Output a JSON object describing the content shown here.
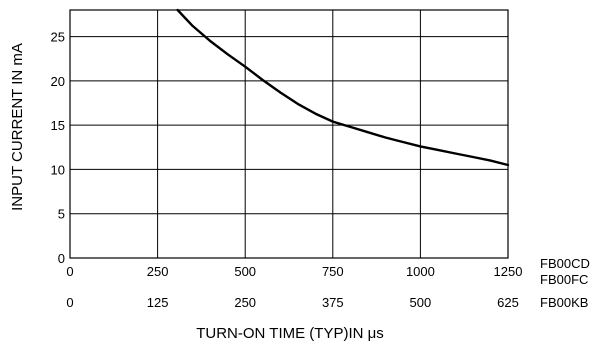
{
  "chart_data": {
    "type": "line",
    "ylabel": "INPUT CURRENT IN mA",
    "xlabel": "TURN-ON TIME (TYP)IN μs",
    "ylim": [
      0,
      28
    ],
    "y_ticks": [
      "0",
      "5",
      "10",
      "15",
      "20",
      "25"
    ],
    "x_axes": [
      {
        "ticks": [
          "0",
          "250",
          "500",
          "750",
          "1000",
          "1250"
        ],
        "labels": [
          "FB00CD",
          "FB00FC"
        ]
      },
      {
        "ticks": [
          "0",
          "125",
          "250",
          "375",
          "500",
          "625"
        ],
        "labels": [
          "FB00KB"
        ]
      }
    ],
    "xlim": [
      0,
      1250
    ],
    "grid": true,
    "series": [
      {
        "x": [
          307,
          350,
          400,
          450,
          500,
          550,
          600,
          650,
          700,
          750,
          800,
          850,
          900,
          950,
          1000,
          1050,
          1100,
          1150,
          1200,
          1250
        ],
        "values": [
          28.0,
          26.2,
          24.5,
          23.0,
          21.6,
          20.1,
          18.7,
          17.4,
          16.3,
          15.4,
          14.8,
          14.2,
          13.6,
          13.1,
          12.6,
          12.2,
          11.8,
          11.4,
          11.0,
          10.5
        ]
      }
    ]
  }
}
